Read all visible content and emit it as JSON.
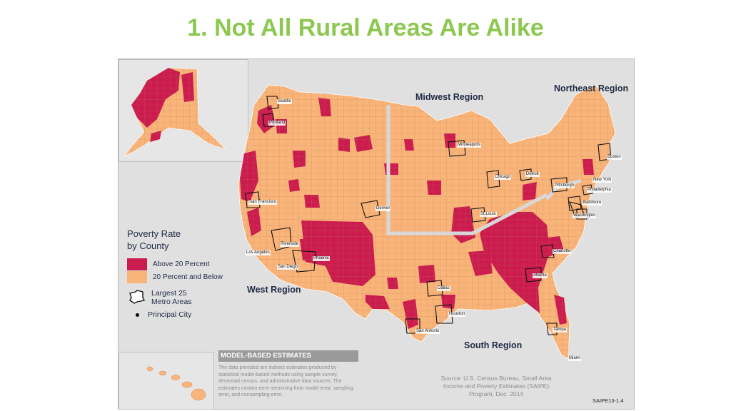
{
  "slide": {
    "title": "1.  Not All Rural Areas Are Alike"
  },
  "legend": {
    "title_line1": "Poverty Rate",
    "title_line2": "by County",
    "categories": [
      {
        "label": "Above 20 Percent",
        "color": "#cc1c4f"
      },
      {
        "label": "20 Percent and Below",
        "color": "#f9b47a"
      }
    ],
    "metro_label": "Largest 25 Metro Areas",
    "city_label": "Principal City"
  },
  "regions": {
    "west": "West Region",
    "midwest": "Midwest Region",
    "northeast": "Northeast Region",
    "south": "South Region"
  },
  "cities": {
    "seattle": "Seattle",
    "portland": "Portland",
    "san_francisco": "San Francisco",
    "riverside": "Riverside",
    "los_angeles": "Los Angeles",
    "san_diego": "San Diego",
    "phoenix": "Phoenix",
    "denver": "Denver",
    "minneapolis": "Minneapolis",
    "chicago": "Chicago",
    "detroit": "Detroit",
    "st_louis": "St.Louis",
    "dallas": "Dallas",
    "houston": "Houston",
    "san_antonio": "San Antonio",
    "atlanta": "Atlanta",
    "tampa": "Tampa",
    "miami": "Miami",
    "charlotte": "Charlotte",
    "washington": "Washington",
    "baltimore": "Baltimore",
    "philadelphia": "Philadelphia",
    "new_york": "New York",
    "boston": "Boston",
    "pittsburgh": "Pittsburgh"
  },
  "methodology": {
    "header": "MODEL-BASED ESTIMATES",
    "text": "The data provided are indirect estimates produced by statistical model-based methods using sample survey, decennial census, and administrative data sources. The estimates contain error stemming from model error, sampling error, and nonsampling error."
  },
  "source": {
    "text": "Source: U.S. Census Bureau, Small Area Income and Poverty Estimates (SAIPE) Program, Dec. 2014"
  },
  "code": "SAIPE13-1.4"
}
